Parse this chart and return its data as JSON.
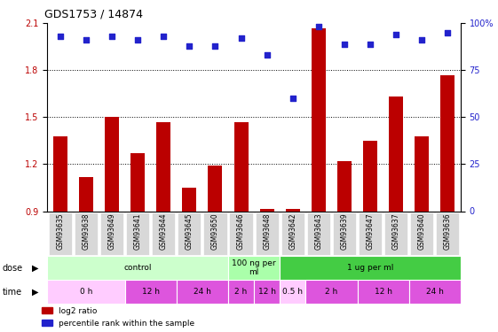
{
  "title": "GDS1753 / 14874",
  "samples": [
    "GSM93635",
    "GSM93638",
    "GSM93649",
    "GSM93641",
    "GSM93644",
    "GSM93645",
    "GSM93650",
    "GSM93646",
    "GSM93648",
    "GSM93642",
    "GSM93643",
    "GSM93639",
    "GSM93647",
    "GSM93637",
    "GSM93640",
    "GSM93636"
  ],
  "log2_ratio": [
    1.38,
    1.12,
    1.5,
    1.27,
    1.47,
    1.05,
    1.19,
    1.47,
    0.915,
    0.915,
    2.07,
    1.22,
    1.35,
    1.63,
    1.38,
    1.77
  ],
  "percentile": [
    93,
    91,
    93,
    91,
    93,
    88,
    88,
    92,
    83,
    60,
    98,
    89,
    89,
    94,
    91,
    95
  ],
  "ylim_left": [
    0.9,
    2.1
  ],
  "yticks_left": [
    0.9,
    1.2,
    1.5,
    1.8,
    2.1
  ],
  "yticks_right": [
    0,
    25,
    50,
    75,
    100
  ],
  "ytick_right_labels": [
    "0",
    "25",
    "50",
    "75",
    "100%"
  ],
  "bar_color": "#bb0000",
  "dot_color": "#2222cc",
  "dose_groups": [
    {
      "label": "control",
      "start": 0,
      "end": 7,
      "color": "#ccffcc"
    },
    {
      "label": "100 ng per\nml",
      "start": 7,
      "end": 9,
      "color": "#aaffaa"
    },
    {
      "label": "1 ug per ml",
      "start": 9,
      "end": 16,
      "color": "#44cc44"
    }
  ],
  "time_groups": [
    {
      "label": "0 h",
      "start": 0,
      "end": 3,
      "color": "#ffccff"
    },
    {
      "label": "12 h",
      "start": 3,
      "end": 5,
      "color": "#dd55dd"
    },
    {
      "label": "24 h",
      "start": 5,
      "end": 7,
      "color": "#dd55dd"
    },
    {
      "label": "2 h",
      "start": 7,
      "end": 8,
      "color": "#dd55dd"
    },
    {
      "label": "12 h",
      "start": 8,
      "end": 9,
      "color": "#dd55dd"
    },
    {
      "label": "0.5 h",
      "start": 9,
      "end": 10,
      "color": "#ffccff"
    },
    {
      "label": "2 h",
      "start": 10,
      "end": 12,
      "color": "#dd55dd"
    },
    {
      "label": "12 h",
      "start": 12,
      "end": 14,
      "color": "#dd55dd"
    },
    {
      "label": "24 h",
      "start": 14,
      "end": 16,
      "color": "#dd55dd"
    }
  ],
  "legend_items": [
    {
      "label": "log2 ratio",
      "color": "#bb0000"
    },
    {
      "label": "percentile rank within the sample",
      "color": "#2222cc"
    }
  ]
}
